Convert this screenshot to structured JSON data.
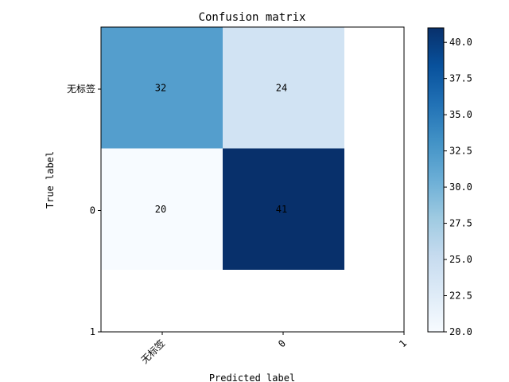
{
  "chart_data": {
    "type": "heatmap",
    "title": "Confusion matrix",
    "xlabel": "Predicted label",
    "ylabel": "True label",
    "x_tick_labels": [
      "无标签",
      "0",
      "1"
    ],
    "y_tick_labels": [
      "无标签",
      "0",
      "1"
    ],
    "cells": [
      {
        "row": 0,
        "col": 0,
        "value": 32
      },
      {
        "row": 0,
        "col": 1,
        "value": 24
      },
      {
        "row": 1,
        "col": 0,
        "value": 20
      },
      {
        "row": 1,
        "col": 1,
        "value": 41
      }
    ],
    "colormap": "Blues",
    "colorbar": {
      "range": [
        20,
        41
      ],
      "ticks": [
        20.0,
        22.5,
        25.0,
        27.5,
        30.0,
        32.5,
        35.0,
        37.5,
        40.0
      ],
      "tick_labels": [
        "20.0",
        "22.5",
        "25.0",
        "27.5",
        "30.0",
        "32.5",
        "35.0",
        "37.5",
        "40.0"
      ]
    },
    "annotation_colors": {
      "dark_cell": "#ffffff",
      "light_cell": "#000000"
    }
  }
}
